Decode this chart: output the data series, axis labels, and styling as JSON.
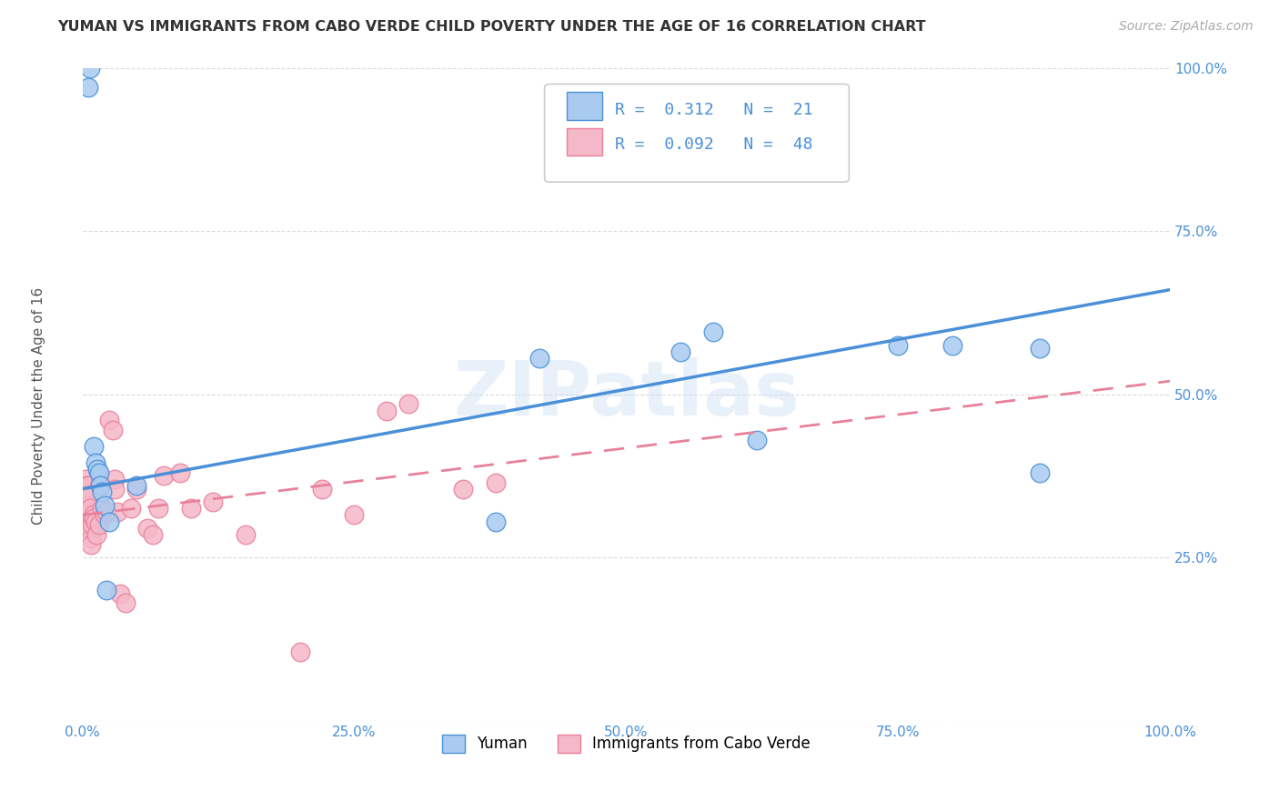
{
  "title": "YUMAN VS IMMIGRANTS FROM CABO VERDE CHILD POVERTY UNDER THE AGE OF 16 CORRELATION CHART",
  "source": "Source: ZipAtlas.com",
  "ylabel": "Child Poverty Under the Age of 16",
  "xlim": [
    0.0,
    1.0
  ],
  "ylim": [
    0.0,
    1.0
  ],
  "xticks": [
    0.0,
    0.25,
    0.5,
    0.75,
    1.0
  ],
  "yticks": [
    0.0,
    0.25,
    0.5,
    0.75,
    1.0
  ],
  "xtick_labels": [
    "0.0%",
    "25.0%",
    "50.0%",
    "75.0%",
    "100.0%"
  ],
  "ytick_labels": [
    "",
    "25.0%",
    "50.0%",
    "75.0%",
    "100.0%"
  ],
  "blue_R": 0.312,
  "blue_N": 21,
  "pink_R": 0.092,
  "pink_N": 48,
  "blue_scatter_x": [
    0.005,
    0.007,
    0.01,
    0.012,
    0.014,
    0.015,
    0.016,
    0.018,
    0.02,
    0.022,
    0.025,
    0.05,
    0.38,
    0.42,
    0.55,
    0.58,
    0.62,
    0.75,
    0.8,
    0.88,
    0.88
  ],
  "blue_scatter_y": [
    0.97,
    1.0,
    0.42,
    0.395,
    0.385,
    0.38,
    0.36,
    0.35,
    0.33,
    0.2,
    0.305,
    0.36,
    0.305,
    0.555,
    0.565,
    0.595,
    0.43,
    0.575,
    0.575,
    0.38,
    0.57
  ],
  "pink_scatter_x": [
    0.002,
    0.003,
    0.004,
    0.005,
    0.005,
    0.005,
    0.006,
    0.006,
    0.007,
    0.007,
    0.008,
    0.008,
    0.008,
    0.009,
    0.009,
    0.01,
    0.01,
    0.012,
    0.013,
    0.015,
    0.016,
    0.018,
    0.02,
    0.022,
    0.025,
    0.028,
    0.03,
    0.03,
    0.032,
    0.035,
    0.04,
    0.045,
    0.05,
    0.06,
    0.065,
    0.07,
    0.075,
    0.09,
    0.1,
    0.12,
    0.15,
    0.2,
    0.22,
    0.25,
    0.28,
    0.3,
    0.35,
    0.38
  ],
  "pink_scatter_y": [
    0.35,
    0.37,
    0.36,
    0.36,
    0.345,
    0.33,
    0.345,
    0.315,
    0.325,
    0.305,
    0.29,
    0.28,
    0.27,
    0.31,
    0.3,
    0.315,
    0.31,
    0.305,
    0.285,
    0.3,
    0.365,
    0.325,
    0.315,
    0.32,
    0.46,
    0.445,
    0.37,
    0.355,
    0.32,
    0.195,
    0.18,
    0.325,
    0.355,
    0.295,
    0.285,
    0.325,
    0.375,
    0.38,
    0.325,
    0.335,
    0.285,
    0.105,
    0.355,
    0.315,
    0.475,
    0.485,
    0.355,
    0.365
  ],
  "blue_line_x0": 0.0,
  "blue_line_y0": 0.355,
  "blue_line_x1": 1.0,
  "blue_line_y1": 0.66,
  "pink_line_x0": 0.0,
  "pink_line_y0": 0.315,
  "pink_line_x1": 1.0,
  "pink_line_y1": 0.52,
  "blue_line_color": "#4a90d9",
  "pink_line_color": "#e8819a",
  "blue_scatter_color": "#aacbf0",
  "pink_scatter_color": "#f5b8c8",
  "watermark": "ZIPatlas",
  "legend_blue_label": "Yuman",
  "legend_pink_label": "Immigrants from Cabo Verde",
  "background_color": "#ffffff",
  "grid_color": "#d8d8d8"
}
